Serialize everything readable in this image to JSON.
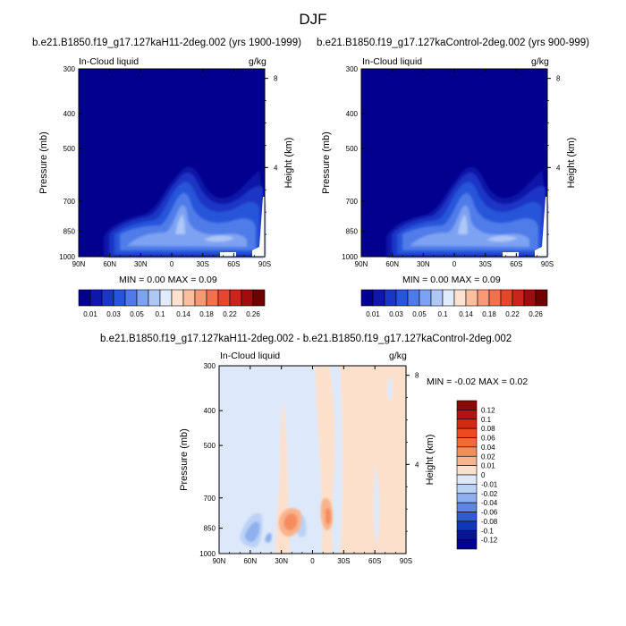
{
  "figure": {
    "title": "DJF"
  },
  "chart_data": [
    {
      "type": "heatmap",
      "title": "b.e21.B1850.f19_g17.127kaH11-2deg.002 (yrs 1900-1999)",
      "left_label": "In-Cloud liquid",
      "units": "g/kg",
      "xlabel": "",
      "ylabel": "Pressure (mb)",
      "y2label": "Height (km)",
      "x_ticks": [
        "90N",
        "60N",
        "30N",
        "0",
        "30S",
        "60S",
        "90S"
      ],
      "y_ticks": [
        "300",
        "400",
        "500",
        "700",
        "850",
        "1000"
      ],
      "y2_ticks": [
        "8",
        "4"
      ],
      "minmax": "MIN =  0.00  MAX =  0.09",
      "colorbar_labels": [
        "0.01",
        "0.03",
        "0.05",
        "0.1",
        "0.14",
        "0.18",
        "0.22",
        "0.26"
      ],
      "colorbar_colors": [
        "#03008f",
        "#0f17a8",
        "#1a36c4",
        "#2555d9",
        "#4f7be8",
        "#7ea2f2",
        "#aec7f7",
        "#e0ebfb",
        "#fde3cf",
        "#fbbf9e",
        "#f79a74",
        "#f0724c",
        "#e3482a",
        "#c8261a",
        "#9e0e0e",
        "#6e0000"
      ],
      "ylim": [
        1000,
        300
      ],
      "xlim": [
        90,
        -90
      ],
      "grid": false
    },
    {
      "type": "heatmap",
      "title": "b.e21.B1850.f19_g17.127kaControl-2deg.002 (yrs 900-999)",
      "left_label": "In-Cloud liquid",
      "units": "g/kg",
      "xlabel": "",
      "ylabel": "Pressure (mb)",
      "y2label": "Height (km)",
      "x_ticks": [
        "90N",
        "60N",
        "30N",
        "0",
        "30S",
        "60S",
        "90S"
      ],
      "y_ticks": [
        "300",
        "400",
        "500",
        "700",
        "850",
        "1000"
      ],
      "y2_ticks": [
        "8",
        "4"
      ],
      "minmax": "MIN =  0.00  MAX =  0.09",
      "colorbar_labels": [
        "0.01",
        "0.03",
        "0.05",
        "0.1",
        "0.14",
        "0.18",
        "0.22",
        "0.26"
      ],
      "ylim": [
        1000,
        300
      ],
      "xlim": [
        90,
        -90
      ],
      "grid": false
    },
    {
      "type": "heatmap",
      "title": "b.e21.B1850.f19_g17.127kaH11-2deg.002 - b.e21.B1850.f19_g17.127kaControl-2deg.002",
      "left_label": "In-Cloud liquid",
      "units": "g/kg",
      "xlabel": "",
      "ylabel": "Pressure (mb)",
      "y2label": "Height (km)",
      "x_ticks": [
        "90N",
        "60N",
        "30N",
        "0",
        "30S",
        "60S",
        "90S"
      ],
      "y_ticks": [
        "300",
        "400",
        "500",
        "700",
        "850",
        "1000"
      ],
      "y2_ticks": [
        "8",
        "4"
      ],
      "minmax": "MIN = -0.02  MAX =  0.02",
      "colorbar_labels": [
        "0.12",
        "0.1",
        "0.08",
        "0.06",
        "0.04",
        "0.02",
        "0.01",
        "0",
        "-0.01",
        "-0.02",
        "-0.04",
        "-0.06",
        "-0.08",
        "-0.1",
        "-0.12"
      ],
      "colorbar_colors": [
        "#8a0a0a",
        "#b3140f",
        "#d42a14",
        "#ec4a20",
        "#f26a3a",
        "#f58c5e",
        "#f9b38c",
        "#fde0cc",
        "#dde9fa",
        "#bcd2f5",
        "#8fb0ee",
        "#5c87e2",
        "#2f5bd3",
        "#1236b8",
        "#05168f",
        "#03008f"
      ],
      "ylim": [
        1000,
        300
      ],
      "xlim": [
        90,
        -90
      ],
      "grid": false
    }
  ]
}
